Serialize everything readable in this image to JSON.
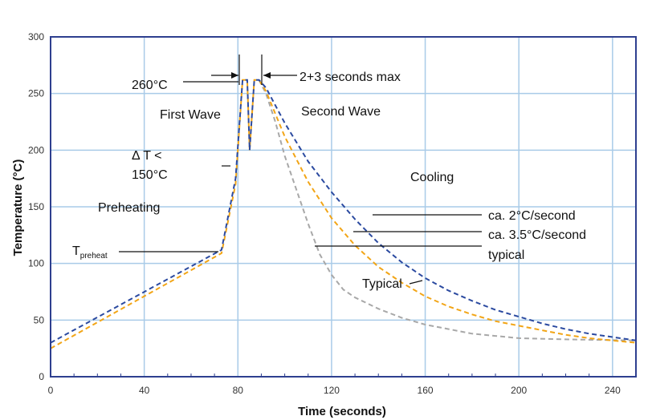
{
  "chart_data": {
    "type": "line",
    "title": "",
    "xlabel": "Time (seconds)",
    "ylabel": "Temperature (°C)",
    "xlim": [
      0,
      250
    ],
    "ylim": [
      0,
      300
    ],
    "xticks": [
      0,
      40,
      80,
      120,
      160,
      200,
      240
    ],
    "yticks": [
      0,
      50,
      100,
      150,
      200,
      250,
      300
    ],
    "grid": true,
    "colors": {
      "grid": "#a9cbe8",
      "frame": "#2e3f8f",
      "blue": "#2b4aa0",
      "orange": "#f2a516",
      "gray": "#a8a8a8",
      "annotation": "#111111"
    },
    "series": [
      {
        "color": "blue",
        "points": [
          [
            0,
            30
          ],
          [
            73,
            112
          ],
          [
            79,
            175
          ],
          [
            82,
            262
          ],
          [
            84,
            262
          ],
          [
            85,
            200
          ],
          [
            87,
            262
          ],
          [
            89,
            262
          ],
          [
            92,
            255
          ],
          [
            100,
            224
          ],
          [
            110,
            190
          ],
          [
            120,
            163
          ],
          [
            130,
            139
          ],
          [
            140,
            118
          ],
          [
            150,
            101
          ],
          [
            160,
            87
          ],
          [
            170,
            76
          ],
          [
            180,
            67
          ],
          [
            190,
            59
          ],
          [
            200,
            53
          ],
          [
            210,
            47
          ],
          [
            220,
            42
          ],
          [
            230,
            38
          ],
          [
            240,
            35
          ],
          [
            250,
            32
          ]
        ]
      },
      {
        "color": "orange",
        "points": [
          [
            0,
            25
          ],
          [
            73,
            109
          ],
          [
            79,
            170
          ],
          [
            82,
            262
          ],
          [
            84,
            262
          ],
          [
            85,
            200
          ],
          [
            87,
            262
          ],
          [
            89,
            262
          ],
          [
            92,
            252
          ],
          [
            100,
            212
          ],
          [
            110,
            172
          ],
          [
            120,
            140
          ],
          [
            130,
            116
          ],
          [
            140,
            97
          ],
          [
            150,
            83
          ],
          [
            160,
            71
          ],
          [
            170,
            62
          ],
          [
            180,
            55
          ],
          [
            190,
            49
          ],
          [
            200,
            45
          ],
          [
            210,
            41
          ],
          [
            220,
            37
          ],
          [
            230,
            34
          ],
          [
            240,
            32
          ],
          [
            250,
            30
          ]
        ]
      },
      {
        "color": "gray",
        "points": [
          [
            89,
            262
          ],
          [
            92,
            250
          ],
          [
            96,
            225
          ],
          [
            100,
            195
          ],
          [
            105,
            165
          ],
          [
            110,
            135
          ],
          [
            115,
            108
          ],
          [
            120,
            90
          ],
          [
            125,
            77
          ],
          [
            130,
            70
          ],
          [
            140,
            60
          ],
          [
            150,
            52
          ],
          [
            160,
            46
          ],
          [
            170,
            42
          ],
          [
            180,
            38
          ],
          [
            190,
            36
          ],
          [
            200,
            34
          ],
          [
            220,
            33
          ],
          [
            250,
            32
          ]
        ]
      }
    ],
    "annotations": {
      "peak_temp": "260°C",
      "max_time": "2+3 seconds max",
      "first_wave": "First Wave",
      "second_wave": "Second Wave",
      "delta_t_line1": "Δ T <",
      "delta_t_line2": "150°C",
      "preheating": "Preheating",
      "cooling": "Cooling",
      "rate_2": "ca. 2°C/second",
      "rate_3_5": "ca. 3.5°C/second",
      "typical_rate": "typical",
      "typical_curve": "Typical",
      "t_preheat_main": "T",
      "t_preheat_sub": "preheat"
    }
  }
}
